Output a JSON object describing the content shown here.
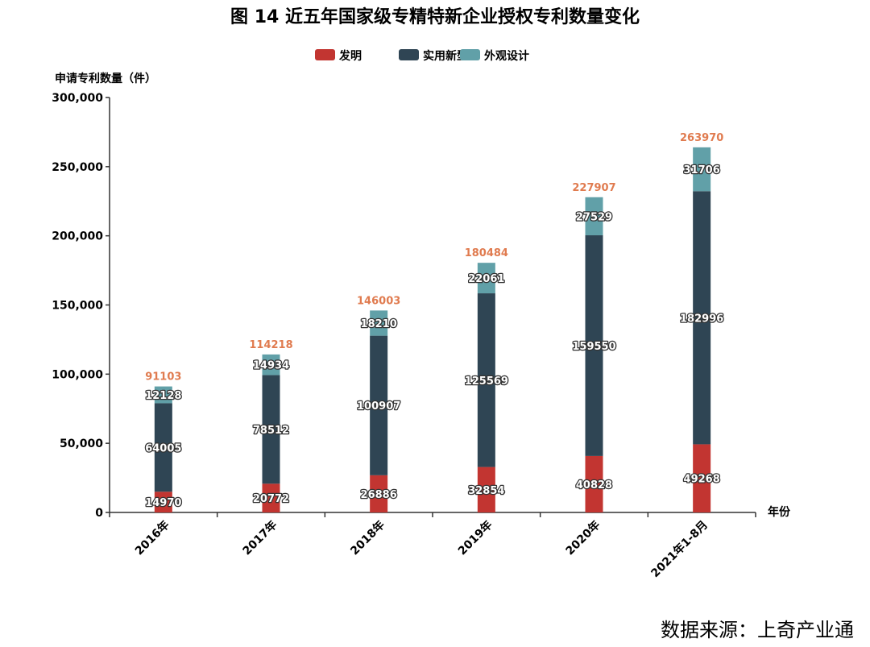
{
  "colors": {
    "series": [
      "#c23531",
      "#2f4554",
      "#61a0a8"
    ],
    "total_label": "#e07b4f",
    "axis": "#333333"
  },
  "chart_data": {
    "type": "bar",
    "stacked": true,
    "title": "图 14  近五年国家级专精特新企业授权专利数量变化",
    "xlabel": "年份",
    "ylabel": "申请专利数量（件）",
    "categories": [
      "2016年",
      "2017年",
      "2018年",
      "2019年",
      "2020年",
      "2021年1-8月"
    ],
    "series": [
      {
        "name": "发明",
        "values": [
          14970,
          20772,
          26886,
          32854,
          40828,
          49268
        ]
      },
      {
        "name": "实用新型",
        "values": [
          64005,
          78512,
          100907,
          125569,
          159550,
          182996
        ]
      },
      {
        "name": "外观设计",
        "values": [
          12128,
          14934,
          18210,
          22061,
          27529,
          31706
        ]
      }
    ],
    "totals": [
      91103,
      114218,
      146003,
      180484,
      227907,
      263970
    ],
    "ylim": [
      0,
      300000
    ],
    "yticks": [
      0,
      50000,
      100000,
      150000,
      200000,
      250000,
      300000
    ],
    "ytick_labels": [
      "0",
      "50,000",
      "100,000",
      "150,000",
      "200,000",
      "250,000",
      "300,000"
    ],
    "legend_position": "top-center",
    "grid": false
  },
  "source_text": "数据来源：上奇产业通"
}
